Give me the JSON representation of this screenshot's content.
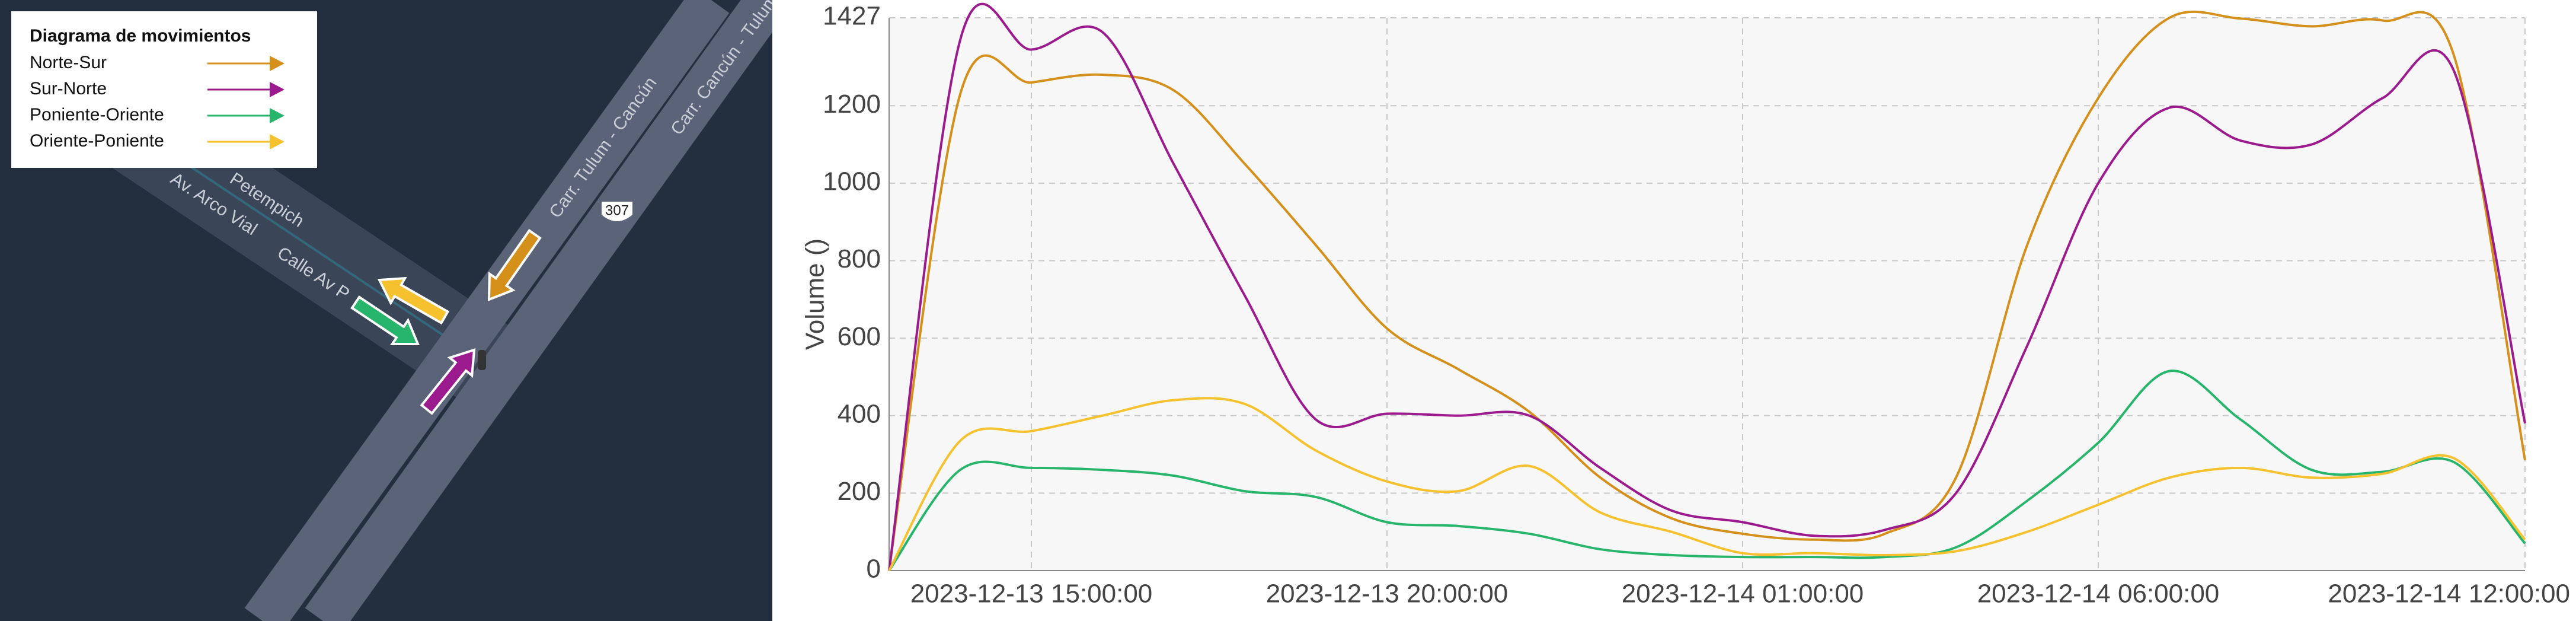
{
  "map": {
    "legend_title": "Diagrama de movimientos",
    "labels": [
      "Carr. Tulum - Cancún",
      "Carr. Cancún - Tulum",
      "Petempich",
      "Av. Arco Vial",
      "Calle Av P",
      "307"
    ]
  },
  "chart_data": {
    "type": "line",
    "ylabel": "Volume ()",
    "x": [
      "2023-12-13 13:00:00",
      "2023-12-13 14:00:00",
      "2023-12-13 15:00:00",
      "2023-12-13 16:00:00",
      "2023-12-13 17:00:00",
      "2023-12-13 18:00:00",
      "2023-12-13 19:00:00",
      "2023-12-13 20:00:00",
      "2023-12-13 21:00:00",
      "2023-12-13 22:00:00",
      "2023-12-13 23:00:00",
      "2023-12-14 00:00:00",
      "2023-12-14 01:00:00",
      "2023-12-14 02:00:00",
      "2023-12-14 03:00:00",
      "2023-12-14 04:00:00",
      "2023-12-14 05:00:00",
      "2023-12-14 06:00:00",
      "2023-12-14 07:00:00",
      "2023-12-14 08:00:00",
      "2023-12-14 09:00:00",
      "2023-12-14 10:00:00",
      "2023-12-14 11:00:00",
      "2023-12-14 12:00:00"
    ],
    "series": [
      {
        "name": "Norte-Sur",
        "color": "#d4901a",
        "values": [
          0,
          1230,
          1260,
          1280,
          1240,
          1050,
          840,
          625,
          520,
          410,
          240,
          135,
          95,
          80,
          95,
          240,
          840,
          1220,
          1427,
          1425,
          1405,
          1420,
          1330,
          285
        ]
      },
      {
        "name": "Sur-Norte",
        "color": "#9b1a8e",
        "values": [
          0,
          1370,
          1345,
          1390,
          1050,
          710,
          390,
          405,
          400,
          400,
          265,
          155,
          125,
          90,
          105,
          200,
          580,
          1000,
          1195,
          1110,
          1100,
          1220,
          1290,
          380
        ]
      },
      {
        "name": "Poniente-Oriente",
        "color": "#27b56b",
        "values": [
          0,
          260,
          265,
          260,
          245,
          205,
          190,
          125,
          115,
          95,
          55,
          40,
          35,
          35,
          35,
          60,
          180,
          330,
          515,
          390,
          260,
          255,
          280,
          70
        ]
      },
      {
        "name": "Oriente-Poniente",
        "color": "#f6c12e",
        "values": [
          0,
          335,
          360,
          400,
          440,
          430,
          310,
          230,
          205,
          270,
          150,
          100,
          45,
          45,
          40,
          50,
          100,
          170,
          240,
          265,
          240,
          250,
          290,
          80
        ]
      }
    ],
    "xlim": [
      "2023-12-13 13:00:00",
      "2023-12-14 12:00:00"
    ],
    "xticks": [
      "2023-12-13 15:00:00",
      "2023-12-13 20:00:00",
      "2023-12-14 01:00:00",
      "2023-12-14 06:00:00",
      "2023-12-14 12:00:00"
    ],
    "ylim": [
      0,
      1427
    ],
    "yticks": [
      0,
      200,
      400,
      600,
      800,
      1000,
      1200,
      1427
    ],
    "grid": true
  }
}
